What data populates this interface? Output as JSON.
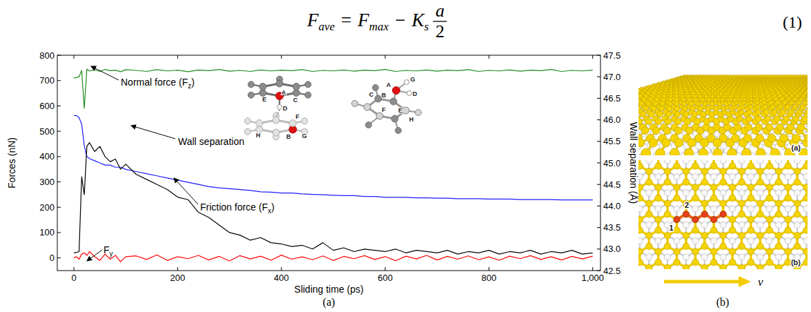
{
  "equation": {
    "lhs": "F",
    "lhs_subscript": "ave",
    "equals": "=",
    "term1": "F",
    "term1_subscript": "max",
    "minus": "−",
    "term2": "K",
    "term2_subscript": "s",
    "numerator": "a",
    "denominator": "2",
    "number": "(1)"
  },
  "chart_data": {
    "type": "line",
    "x_label": "Sliding time (ps)",
    "y_label": "Forces (nN)",
    "y2_label": "Wall separation (Å)",
    "x": [
      0,
      5,
      10,
      15,
      20,
      25,
      30,
      40,
      50,
      60,
      70,
      80,
      90,
      100,
      120,
      140,
      160,
      180,
      200,
      220,
      240,
      260,
      280,
      300,
      320,
      340,
      360,
      380,
      400,
      420,
      440,
      460,
      480,
      500,
      520,
      540,
      560,
      580,
      600,
      620,
      640,
      660,
      680,
      700,
      720,
      740,
      760,
      780,
      800,
      820,
      840,
      860,
      880,
      900,
      920,
      940,
      960,
      980,
      1000
    ],
    "xlim": [
      -32,
      1015
    ],
    "xticks": [
      0,
      200,
      400,
      600,
      800,
      {
        "value": 1000,
        "label": "1,000"
      }
    ],
    "ylim": [
      -50,
      800
    ],
    "yticks": [
      0,
      100,
      200,
      300,
      400,
      500,
      600,
      700,
      800
    ],
    "y2lim": [
      42.5,
      47.5
    ],
    "y2ticks": [
      42.5,
      {
        "value": 43,
        "label": "43.0"
      },
      43.5,
      {
        "value": 44,
        "label": "44.0"
      },
      44.5,
      {
        "value": 45,
        "label": "45.0"
      },
      45.5,
      {
        "value": 46,
        "label": "46.0"
      },
      46.5,
      {
        "value": 47,
        "label": "47.0"
      },
      47.5
    ],
    "grid": false,
    "series": [
      {
        "label": {
          "text": "Normal force (F",
          "subscript": "z",
          "suffix": ")"
        },
        "color": "#1a8c1a",
        "values": [
          710,
          712,
          715,
          740,
          590,
          745,
          738,
          742,
          736,
          744,
          739,
          741,
          735,
          743,
          740,
          736,
          743,
          738,
          741,
          735,
          742,
          739,
          744,
          737,
          740,
          736,
          742,
          738,
          741,
          739,
          743,
          736,
          740,
          738,
          742,
          737,
          741,
          739,
          744,
          736,
          740,
          738,
          742,
          737,
          741,
          739,
          743,
          736,
          740,
          738,
          742,
          737,
          741,
          739,
          744,
          736,
          740,
          738,
          741
        ]
      },
      {
        "label": {
          "text": "Wall separation"
        },
        "color": "#1a1aff",
        "axis": "y2",
        "values": [
          46.1,
          46.1,
          46.05,
          45.9,
          45.4,
          45.15,
          45.1,
          45.05,
          45.0,
          44.95,
          44.95,
          44.9,
          44.9,
          44.85,
          44.8,
          44.75,
          44.7,
          44.65,
          44.6,
          44.55,
          44.5,
          44.45,
          44.42,
          44.4,
          44.38,
          44.36,
          44.33,
          44.32,
          44.3,
          44.3,
          44.28,
          44.27,
          44.26,
          44.25,
          44.24,
          44.24,
          44.22,
          44.22,
          44.2,
          44.2,
          44.2,
          44.19,
          44.19,
          44.18,
          44.18,
          44.17,
          44.17,
          44.17,
          44.16,
          44.16,
          44.16,
          44.15,
          44.15,
          44.15,
          44.15,
          44.14,
          44.14,
          44.14,
          44.14
        ]
      },
      {
        "label": {
          "text": "Friction force (F",
          "subscript": "x",
          "suffix": ")"
        },
        "color": "#000000",
        "values": [
          20,
          22,
          25,
          320,
          250,
          440,
          455,
          420,
          440,
          400,
          380,
          390,
          350,
          370,
          330,
          310,
          290,
          270,
          240,
          230,
          180,
          160,
          130,
          100,
          90,
          70,
          80,
          60,
          55,
          45,
          50,
          35,
          60,
          30,
          40,
          25,
          35,
          30,
          25,
          35,
          20,
          30,
          25,
          20,
          30,
          15,
          25,
          20,
          30,
          15,
          25,
          20,
          30,
          15,
          25,
          20,
          30,
          15,
          20
        ]
      },
      {
        "label": {
          "text": "F",
          "subscript": "y"
        },
        "color": "#ff0000",
        "values": [
          0,
          5,
          -5,
          15,
          20,
          10,
          25,
          5,
          -10,
          15,
          -5,
          10,
          -15,
          5,
          8,
          -6,
          12,
          -10,
          5,
          -3,
          10,
          -8,
          6,
          -12,
          9,
          -4,
          7,
          -9,
          11,
          -5,
          4,
          -7,
          8,
          -10,
          6,
          -3,
          9,
          -6,
          5,
          -11,
          7,
          -4,
          10,
          -8,
          6,
          -5,
          8,
          -7,
          4,
          -9,
          7,
          -3,
          9,
          -6,
          5,
          -8,
          6,
          -4,
          7
        ]
      }
    ],
    "inset": {
      "molecule_1_atoms": [
        "E",
        "A",
        "C",
        "D",
        "F",
        "H",
        "B",
        "G"
      ],
      "molecule_2_atoms": [
        "C",
        "B",
        "A",
        "G",
        "D",
        "F",
        "E",
        "H"
      ]
    }
  },
  "panel_b": {
    "views": [
      "(a)",
      "(b)"
    ],
    "path_labels": [
      "1",
      "2"
    ],
    "velocity": "v"
  },
  "captions": [
    "(a)",
    "(b)"
  ]
}
